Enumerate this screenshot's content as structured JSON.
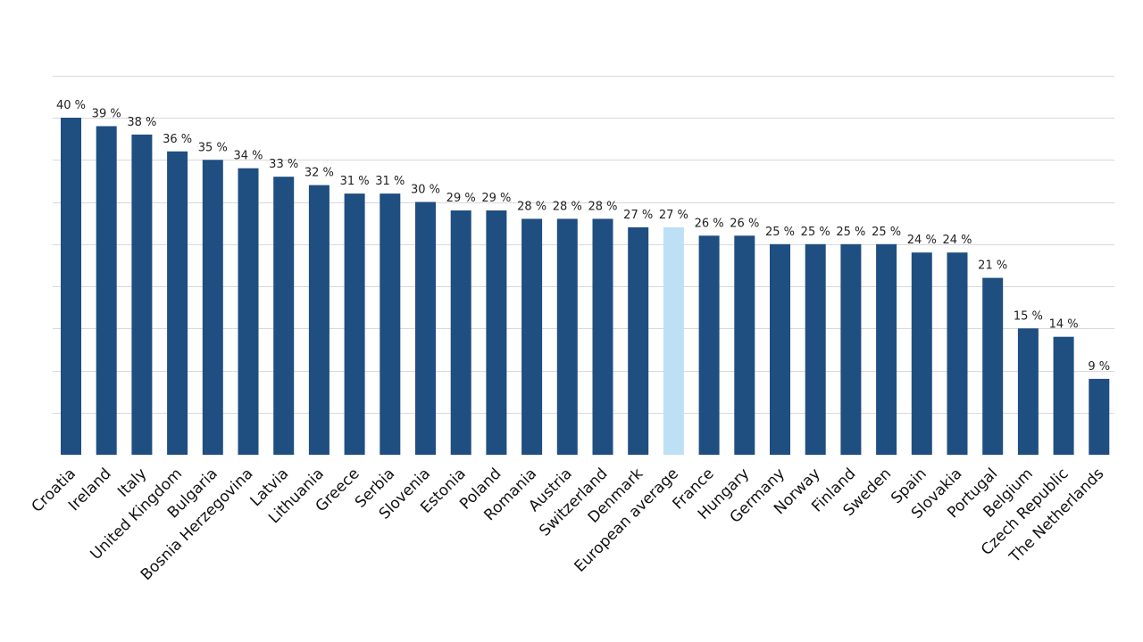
{
  "chart_data": {
    "type": "bar",
    "categories": [
      "Croatia",
      "Ireland",
      "Italy",
      "United Kingdom",
      "Bulgaria",
      "Bosnia Herzegovina",
      "Latvia",
      "Lithuania",
      "Greece",
      "Serbia",
      "Slovenia",
      "Estonia",
      "Poland",
      "Romania",
      "Austria",
      "Switzerland",
      "Denmark",
      "European average",
      "France",
      "Hungary",
      "Germany",
      "Norway",
      "Finland",
      "Sweden",
      "Spain",
      "Slovakia",
      "Portugal",
      "Belgium",
      "Czech Republic",
      "The Netherlands"
    ],
    "values": [
      40,
      39,
      38,
      36,
      35,
      34,
      33,
      32,
      31,
      31,
      30,
      29,
      29,
      28,
      28,
      28,
      27,
      27,
      26,
      26,
      25,
      25,
      25,
      25,
      24,
      24,
      21,
      15,
      14,
      9
    ],
    "labels": [
      "40 %",
      "39 %",
      "38 %",
      "36 %",
      "35 %",
      "34 %",
      "33 %",
      "32 %",
      "31 %",
      "31 %",
      "30 %",
      "29 %",
      "29 %",
      "28 %",
      "28 %",
      "28 %",
      "27 %",
      "27 %",
      "26 %",
      "26 %",
      "25 %",
      "25 %",
      "25 %",
      "25 %",
      "24 %",
      "24 %",
      "21 %",
      "15 %",
      "14 %",
      "9 %"
    ],
    "highlight_category": "European average",
    "ylim": [
      0,
      45
    ],
    "grid": true,
    "gridline_step": 5,
    "y_tick_labels_shown": false,
    "legend": "none",
    "colors": {
      "bar": "#1f4e81",
      "highlight": "#bde0f6",
      "grid": "#d9d9d9",
      "label": "#222222"
    }
  }
}
